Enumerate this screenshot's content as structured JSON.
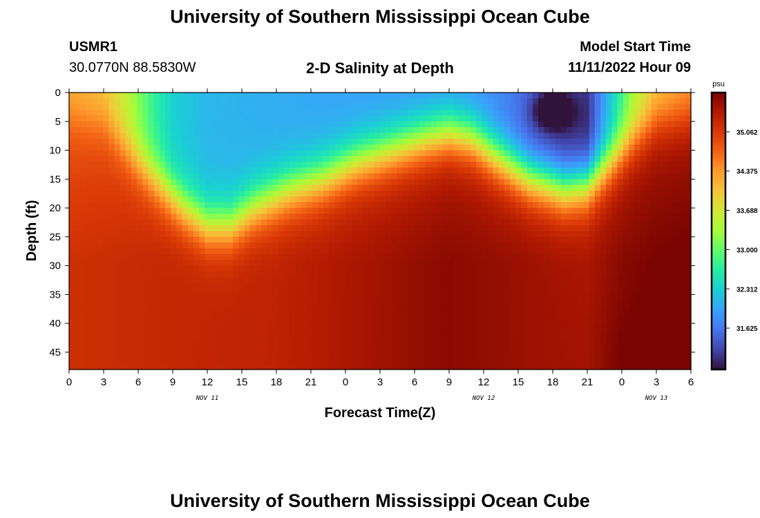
{
  "page": {
    "title": "University of Southern Mississippi Ocean Cube",
    "footer_title": "University of Southern Mississippi Ocean Cube",
    "station_id": "USMR1",
    "station_coords": "30.0770N  88.5830W",
    "subtitle": "2-D Salinity at Depth",
    "model_label": "Model Start Time",
    "model_time": "11/11/2022 Hour 09"
  },
  "chart_data": {
    "type": "heatmap",
    "title": "2-D Salinity at Depth",
    "xlabel": "Forecast Time(Z)",
    "ylabel": "Depth (ft)",
    "x_range_hours": [
      0,
      54
    ],
    "ylim": [
      0,
      48
    ],
    "y_inverted": true,
    "x_tick_labels": [
      "0",
      "3",
      "6",
      "9",
      "12",
      "15",
      "18",
      "21",
      "0",
      "3",
      "6",
      "9",
      "12",
      "15",
      "18",
      "21",
      "0",
      "3",
      "6"
    ],
    "y_ticks": [
      0,
      5,
      10,
      15,
      20,
      25,
      30,
      35,
      40,
      45
    ],
    "date_labels": [
      {
        "label": "NOV 11",
        "x_hours": 12
      },
      {
        "label": "NOV 12",
        "x_hours": 36
      },
      {
        "label": "NOV 13",
        "x_hours": 51
      }
    ],
    "colorbar": {
      "unit": "psu",
      "ticks": [
        "35.062",
        "34.375",
        "33.688",
        "33.000",
        "32.312",
        "31.625"
      ],
      "tick_values": [
        35.062,
        34.375,
        33.688,
        33.0,
        32.312,
        31.625
      ],
      "range": [
        30.9,
        35.75
      ],
      "colormap": [
        "#30123b",
        "#4145ab",
        "#4675ed",
        "#39a2fc",
        "#1bcfd4",
        "#24eca6",
        "#61fc6c",
        "#a4fc3b",
        "#d1e834",
        "#f3c63a",
        "#fe9b2d",
        "#f36315",
        "#d93806",
        "#b11901",
        "#7a0402"
      ]
    },
    "grid": false,
    "legend": "right"
  }
}
